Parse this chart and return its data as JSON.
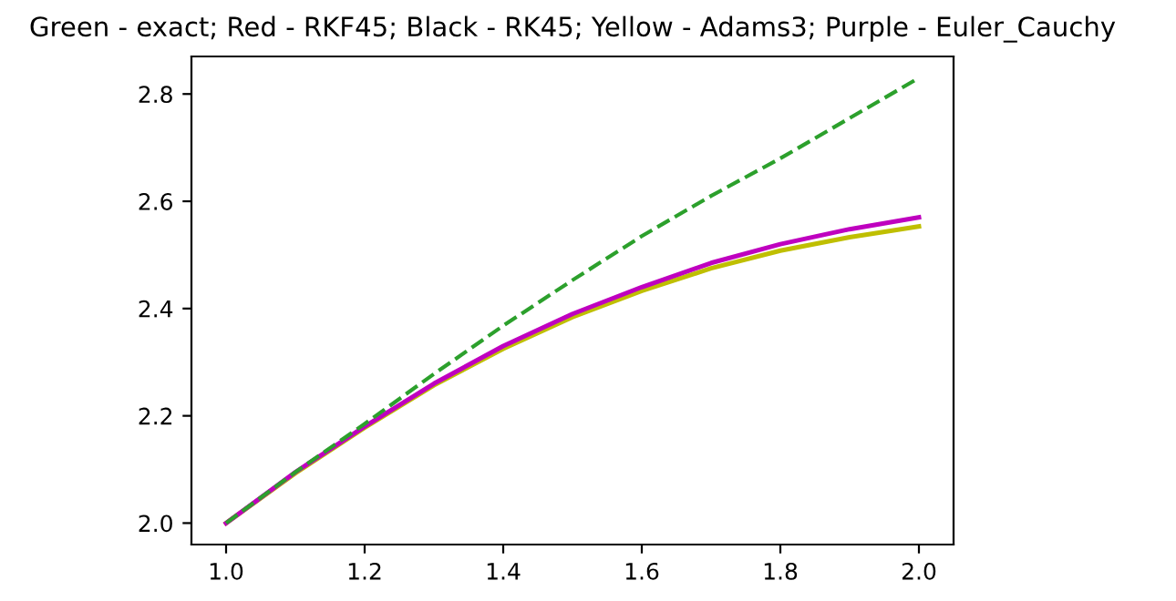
{
  "chart_data": {
    "type": "line",
    "title": "Green - exact; Red - RKF45; Black - RK45; Yellow - Adams3; Purple - Euler_Cauchy",
    "x": [
      1.0,
      1.1,
      1.2,
      1.3,
      1.4,
      1.5,
      1.6,
      1.7,
      1.8,
      1.9,
      2.0
    ],
    "series": [
      {
        "color": "#2ca02c",
        "line_style": "dashed",
        "values": [
          2.0,
          2.095,
          2.185,
          2.278,
          2.368,
          2.453,
          2.535,
          2.61,
          2.68,
          2.755,
          2.83
        ]
      },
      {
        "color": "#bfbf00",
        "line_style": "solid",
        "values": [
          2.0,
          2.093,
          2.178,
          2.257,
          2.325,
          2.384,
          2.433,
          2.475,
          2.508,
          2.533,
          2.553
        ]
      },
      {
        "color": "#bf00bf",
        "line_style": "solid",
        "values": [
          2.0,
          2.095,
          2.18,
          2.26,
          2.33,
          2.39,
          2.44,
          2.485,
          2.52,
          2.548,
          2.57
        ]
      }
    ],
    "xlim": [
      0.95,
      2.05
    ],
    "ylim": [
      1.96,
      2.87
    ],
    "xticks": [
      {
        "value": 1.0,
        "label": "1.0"
      },
      1.2,
      1.4,
      1.6,
      1.8,
      {
        "value": 2.0,
        "label": "2.0"
      }
    ],
    "yticks": [
      {
        "value": 2.0,
        "label": "2.0"
      },
      2.2,
      2.4,
      2.6,
      2.8
    ],
    "grid": false,
    "legend": false
  }
}
